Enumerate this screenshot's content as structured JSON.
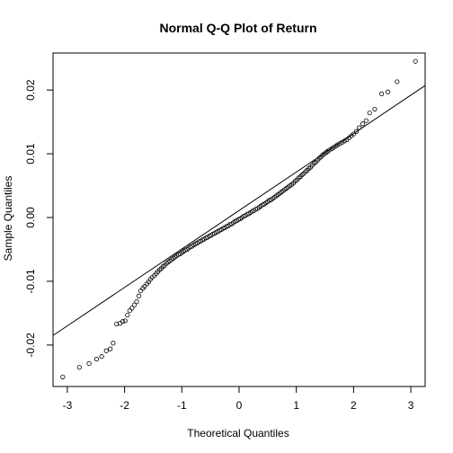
{
  "chart_data": {
    "type": "scatter",
    "title": "Normal Q-Q Plot of Return",
    "xlabel": "Theoretical Quantiles",
    "ylabel": "Sample Quantiles",
    "xlim": [
      -3.25,
      3.25
    ],
    "ylim": [
      -0.0265,
      0.0258
    ],
    "xticks": [
      -3,
      -2,
      -1,
      0,
      1,
      2,
      3
    ],
    "xtick_labels": [
      "-3",
      "-2",
      "-1",
      "0",
      "1",
      "2",
      "3"
    ],
    "yticks": [
      -0.02,
      -0.01,
      0.0,
      0.01,
      0.02
    ],
    "ytick_labels": [
      "-0.02",
      "-0.01",
      "0.00",
      "0.01",
      "0.02"
    ],
    "grid": false,
    "reference_line": {
      "x": [
        -3.25,
        3.25
      ],
      "y": [
        -0.0185,
        0.0207
      ]
    },
    "points": [
      [
        -3.08,
        -0.025
      ],
      [
        -2.79,
        -0.0235
      ],
      [
        -2.62,
        -0.0229
      ],
      [
        -2.49,
        -0.0222
      ],
      [
        -2.4,
        -0.0218
      ],
      [
        -2.32,
        -0.0209
      ],
      [
        -2.25,
        -0.0206
      ],
      [
        -2.2,
        -0.0197
      ],
      [
        -2.14,
        -0.0167
      ],
      [
        -2.08,
        -0.0166
      ],
      [
        -2.03,
        -0.0163
      ],
      [
        -1.99,
        -0.0162
      ],
      [
        -1.95,
        -0.0153
      ],
      [
        -1.91,
        -0.0146
      ],
      [
        -1.87,
        -0.0142
      ],
      [
        -1.83,
        -0.0137
      ],
      [
        -1.79,
        -0.0132
      ],
      [
        -1.75,
        -0.0123
      ],
      [
        -1.72,
        -0.0115
      ],
      [
        -1.68,
        -0.0111
      ],
      [
        -1.65,
        -0.0108
      ],
      [
        -1.61,
        -0.0104
      ],
      [
        -1.58,
        -0.0101
      ],
      [
        -1.55,
        -0.0097
      ],
      [
        -1.52,
        -0.0094
      ],
      [
        -1.48,
        -0.0091
      ],
      [
        -1.45,
        -0.0088
      ],
      [
        -1.42,
        -0.0085
      ],
      [
        -1.39,
        -0.0082
      ],
      [
        -1.36,
        -0.008
      ],
      [
        -1.33,
        -0.0077
      ],
      [
        -1.3,
        -0.0075
      ],
      [
        -1.27,
        -0.0072
      ],
      [
        -1.24,
        -0.007
      ],
      [
        -1.21,
        -0.0068
      ],
      [
        -1.18,
        -0.0066
      ],
      [
        -1.15,
        -0.0064
      ],
      [
        -1.12,
        -0.0062
      ],
      [
        -1.09,
        -0.006
      ],
      [
        -1.06,
        -0.0058
      ],
      [
        -1.03,
        -0.0057
      ],
      [
        -1.0,
        -0.0055
      ],
      [
        -0.97,
        -0.0053
      ],
      [
        -0.94,
        -0.0051
      ],
      [
        -0.91,
        -0.005
      ],
      [
        -0.88,
        -0.0048
      ],
      [
        -0.85,
        -0.0046
      ],
      [
        -0.82,
        -0.0045
      ],
      [
        -0.79,
        -0.0043
      ],
      [
        -0.76,
        -0.0041
      ],
      [
        -0.73,
        -0.004
      ],
      [
        -0.7,
        -0.0038
      ],
      [
        -0.67,
        -0.0037
      ],
      [
        -0.64,
        -0.0035
      ],
      [
        -0.61,
        -0.0034
      ],
      [
        -0.58,
        -0.0032
      ],
      [
        -0.55,
        -0.0031
      ],
      [
        -0.52,
        -0.0029
      ],
      [
        -0.49,
        -0.0028
      ],
      [
        -0.46,
        -0.0026
      ],
      [
        -0.43,
        -0.0025
      ],
      [
        -0.4,
        -0.0023
      ],
      [
        -0.37,
        -0.0022
      ],
      [
        -0.34,
        -0.002
      ],
      [
        -0.31,
        -0.0019
      ],
      [
        -0.28,
        -0.0017
      ],
      [
        -0.25,
        -0.0016
      ],
      [
        -0.22,
        -0.0014
      ],
      [
        -0.19,
        -0.0013
      ],
      [
        -0.16,
        -0.0011
      ],
      [
        -0.13,
        -0.001
      ],
      [
        -0.1,
        -0.0008
      ],
      [
        -0.07,
        -0.0006
      ],
      [
        -0.04,
        -0.0005
      ],
      [
        -0.01,
        -0.0003
      ],
      [
        0.02,
        -0.0002
      ],
      [
        0.05,
        0.0
      ],
      [
        0.08,
        0.0002
      ],
      [
        0.11,
        0.0003
      ],
      [
        0.14,
        0.0005
      ],
      [
        0.17,
        0.0006
      ],
      [
        0.2,
        0.0008
      ],
      [
        0.23,
        0.001
      ],
      [
        0.26,
        0.0011
      ],
      [
        0.29,
        0.0013
      ],
      [
        0.32,
        0.0014
      ],
      [
        0.35,
        0.0016
      ],
      [
        0.38,
        0.0018
      ],
      [
        0.41,
        0.002
      ],
      [
        0.44,
        0.0021
      ],
      [
        0.47,
        0.0023
      ],
      [
        0.5,
        0.0025
      ],
      [
        0.53,
        0.0027
      ],
      [
        0.56,
        0.0028
      ],
      [
        0.59,
        0.003
      ],
      [
        0.62,
        0.0032
      ],
      [
        0.65,
        0.0034
      ],
      [
        0.68,
        0.0036
      ],
      [
        0.71,
        0.0038
      ],
      [
        0.74,
        0.004
      ],
      [
        0.77,
        0.0042
      ],
      [
        0.8,
        0.0044
      ],
      [
        0.83,
        0.0046
      ],
      [
        0.86,
        0.0048
      ],
      [
        0.89,
        0.005
      ],
      [
        0.92,
        0.0052
      ],
      [
        0.95,
        0.0054
      ],
      [
        0.98,
        0.0057
      ],
      [
        1.01,
        0.0059
      ],
      [
        1.04,
        0.0062
      ],
      [
        1.07,
        0.0064
      ],
      [
        1.1,
        0.0067
      ],
      [
        1.13,
        0.0069
      ],
      [
        1.16,
        0.0072
      ],
      [
        1.19,
        0.0074
      ],
      [
        1.22,
        0.0077
      ],
      [
        1.25,
        0.0079
      ],
      [
        1.28,
        0.0082
      ],
      [
        1.31,
        0.0085
      ],
      [
        1.34,
        0.0087
      ],
      [
        1.37,
        0.009
      ],
      [
        1.4,
        0.0093
      ],
      [
        1.43,
        0.0095
      ],
      [
        1.46,
        0.0098
      ],
      [
        1.49,
        0.01
      ],
      [
        1.52,
        0.0102
      ],
      [
        1.55,
        0.0104
      ],
      [
        1.58,
        0.0106
      ],
      [
        1.62,
        0.0108
      ],
      [
        1.65,
        0.011
      ],
      [
        1.69,
        0.0112
      ],
      [
        1.72,
        0.0114
      ],
      [
        1.76,
        0.0116
      ],
      [
        1.8,
        0.0118
      ],
      [
        1.84,
        0.012
      ],
      [
        1.88,
        0.0122
      ],
      [
        1.92,
        0.0125
      ],
      [
        1.96,
        0.0128
      ],
      [
        2.0,
        0.0131
      ],
      [
        2.05,
        0.0135
      ],
      [
        2.1,
        0.0141
      ],
      [
        2.16,
        0.0147
      ],
      [
        2.22,
        0.0152
      ],
      [
        2.28,
        0.0164
      ],
      [
        2.37,
        0.017
      ],
      [
        2.49,
        0.0194
      ],
      [
        2.6,
        0.0197
      ],
      [
        2.76,
        0.0213
      ],
      [
        3.08,
        0.0245
      ]
    ]
  }
}
